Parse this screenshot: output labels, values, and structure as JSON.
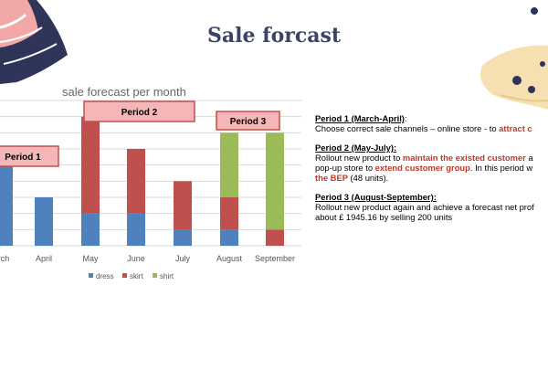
{
  "slide": {
    "title": "Sale forcast",
    "colors": {
      "title": "#3a4466",
      "highlight": "#c0392b",
      "period_box_fill": "#f4b6b6",
      "period_box_border": "#c0504d"
    }
  },
  "chart_data": {
    "type": "bar",
    "stacked": true,
    "title": "sale forecast per month",
    "categories": [
      "March",
      "April",
      "May",
      "June",
      "July",
      "August",
      "September"
    ],
    "category_labels": [
      "rch",
      "April",
      "May",
      "June",
      "July",
      "August",
      "September"
    ],
    "series": [
      {
        "name": "dress",
        "color": "#4f81bd",
        "values": [
          50,
          30,
          20,
          20,
          10,
          10,
          0
        ]
      },
      {
        "name": "skirt",
        "color": "#c0504d",
        "values": [
          0,
          0,
          60,
          40,
          30,
          20,
          10
        ]
      },
      {
        "name": "shirt",
        "color": "#9bbb59",
        "values": [
          0,
          0,
          0,
          0,
          0,
          40,
          60
        ]
      }
    ],
    "ylim": [
      0,
      90
    ],
    "grid": true,
    "legend": "bottom",
    "annotations": [
      {
        "label": "Period 1"
      },
      {
        "label": "Period 2"
      },
      {
        "label": "Period 3"
      }
    ]
  },
  "text": {
    "p1_head": "Period 1 (March-April)",
    "p1_head_suffix": ":",
    "p1_body_a": "Choose correct sale channels – online store - to ",
    "p1_body_hl": "attract c",
    "p2_head": "Period 2 (May-July):",
    "p2_l1_a": "Rollout new product to ",
    "p2_l1_hl": "maintain the existed customer",
    "p2_l1_b": " a",
    "p2_l2_a": "pop-up store to ",
    "p2_l2_hl": "extend customer group",
    "p2_l2_b": ". In this period w",
    "p2_l3_hl": "the BEP",
    "p2_l3_b": " (48 units).",
    "p3_head": "Period 3 (August-September):",
    "p3_l1": "Rollout new product again and achieve a forecast net prof",
    "p3_l2": "about £ 1945.16 by selling 200 units"
  }
}
